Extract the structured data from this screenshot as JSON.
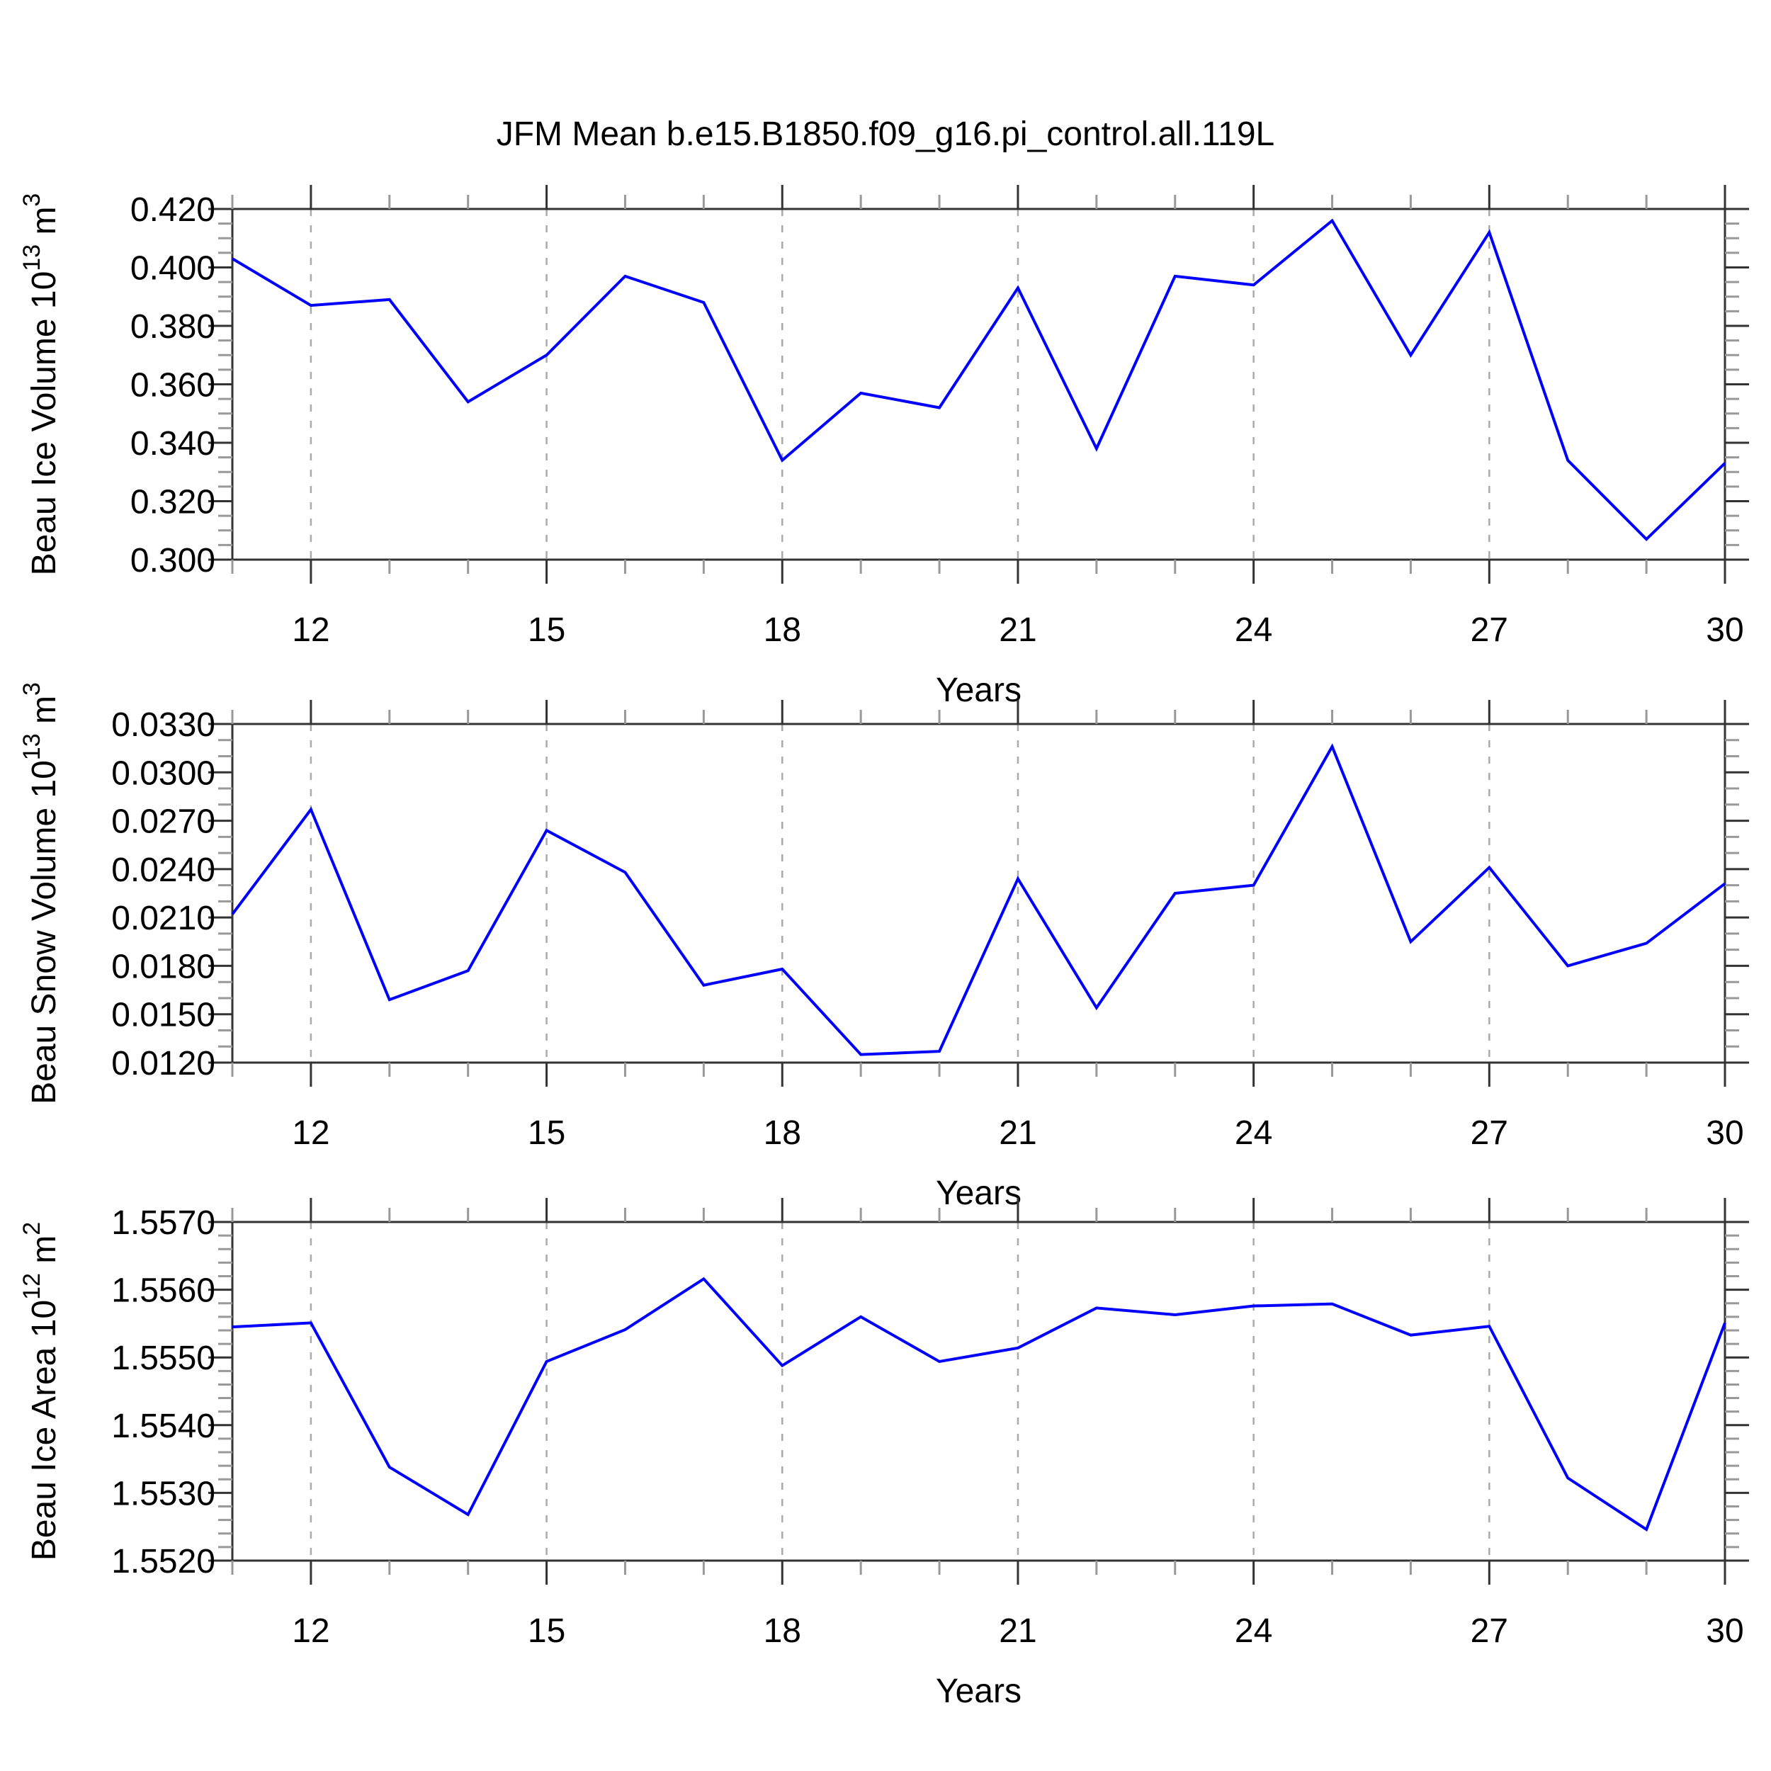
{
  "title": "JFM Mean b.e15.B1850.f09_g16.pi_control.all.119L",
  "colors": {
    "line": "#0000ff",
    "frame": "#333333",
    "major_tick": "#333333",
    "minor_tick": "#999999",
    "grid": "#aaaaaa",
    "text": "#000000",
    "background": "#ffffff"
  },
  "chart_data": [
    {
      "id": "beau-ice-volume",
      "type": "line",
      "title": "",
      "xlabel": "Years",
      "ylabel": "Beau Ice Volume 10^13 m^3",
      "ylabel_rich": [
        [
          "Beau Ice Volume 10",
          false
        ],
        [
          "13",
          true
        ],
        [
          " m",
          false
        ],
        [
          "3",
          true
        ]
      ],
      "xlim": [
        11,
        30
      ],
      "ylim": [
        0.3,
        0.42
      ],
      "x": [
        11,
        12,
        13,
        14,
        15,
        16,
        17,
        18,
        19,
        20,
        21,
        22,
        23,
        24,
        25,
        26,
        27,
        28,
        29,
        30
      ],
      "values": [
        0.403,
        0.387,
        0.389,
        0.354,
        0.37,
        0.397,
        0.388,
        0.334,
        0.357,
        0.352,
        0.393,
        0.338,
        0.397,
        0.394,
        0.416,
        0.37,
        0.412,
        0.334,
        0.307,
        0.333
      ],
      "xticks": [
        12,
        15,
        18,
        21,
        24,
        27,
        30
      ],
      "xtick_labels": [
        "12",
        "15",
        "18",
        "21",
        "24",
        "27",
        "30"
      ],
      "x_minor_step": 1,
      "grid_x": [
        12,
        15,
        18,
        21,
        24,
        27
      ],
      "ytick_step": 0.02,
      "ytick_labels": [
        "0.300",
        "0.320",
        "0.340",
        "0.360",
        "0.380",
        "0.400",
        "0.420"
      ],
      "y_minor_step": 0.005,
      "grid_on": "x-dashed"
    },
    {
      "id": "beau-snow-volume",
      "type": "line",
      "title": "",
      "xlabel": "Years",
      "ylabel": "Beau Snow Volume 10^13 m^3",
      "ylabel_rich": [
        [
          "Beau Snow Volume 10",
          false
        ],
        [
          "13",
          true
        ],
        [
          " m",
          false
        ],
        [
          "3",
          true
        ]
      ],
      "xlim": [
        11,
        30
      ],
      "ylim": [
        0.012,
        0.033
      ],
      "x": [
        11,
        12,
        13,
        14,
        15,
        16,
        17,
        18,
        19,
        20,
        21,
        22,
        23,
        24,
        25,
        26,
        27,
        28,
        29,
        30
      ],
      "values": [
        0.0212,
        0.0277,
        0.0159,
        0.0177,
        0.0264,
        0.0238,
        0.0168,
        0.0178,
        0.0125,
        0.0127,
        0.0234,
        0.0154,
        0.0225,
        0.023,
        0.0316,
        0.0195,
        0.0241,
        0.018,
        0.0194,
        0.0231
      ],
      "xticks": [
        12,
        15,
        18,
        21,
        24,
        27,
        30
      ],
      "xtick_labels": [
        "12",
        "15",
        "18",
        "21",
        "24",
        "27",
        "30"
      ],
      "x_minor_step": 1,
      "grid_x": [
        12,
        15,
        18,
        21,
        24,
        27
      ],
      "ytick_step": 0.003,
      "ytick_labels": [
        "0.0120",
        "0.0150",
        "0.0180",
        "0.0210",
        "0.0240",
        "0.0270",
        "0.0300",
        "0.0330"
      ],
      "y_minor_step": 0.001,
      "grid_on": "x-dashed"
    },
    {
      "id": "beau-ice-area",
      "type": "line",
      "title": "",
      "xlabel": "Years",
      "ylabel": "Beau Ice Area 10^12 m^2",
      "ylabel_rich": [
        [
          "Beau Ice Area 10",
          false
        ],
        [
          "12",
          true
        ],
        [
          " m",
          false
        ],
        [
          "2",
          true
        ]
      ],
      "xlim": [
        11,
        30
      ],
      "ylim": [
        1.552,
        1.557
      ],
      "x": [
        11,
        12,
        13,
        14,
        15,
        16,
        17,
        18,
        19,
        20,
        21,
        22,
        23,
        24,
        25,
        26,
        27,
        28,
        29,
        30
      ],
      "values": [
        1.55545,
        1.55551,
        1.55338,
        1.55268,
        1.55494,
        1.55541,
        1.55616,
        1.55488,
        1.5556,
        1.55494,
        1.55514,
        1.55573,
        1.55563,
        1.55576,
        1.55579,
        1.55533,
        1.55546,
        1.55322,
        1.55246,
        1.55551
      ],
      "xticks": [
        12,
        15,
        18,
        21,
        24,
        27,
        30
      ],
      "xtick_labels": [
        "12",
        "15",
        "18",
        "21",
        "24",
        "27",
        "30"
      ],
      "x_minor_step": 1,
      "grid_x": [
        12,
        15,
        18,
        21,
        24,
        27
      ],
      "ytick_step": 0.001,
      "ytick_labels": [
        "1.5520",
        "1.5530",
        "1.5540",
        "1.5550",
        "1.5560",
        "1.5570"
      ],
      "y_minor_step": 0.0002,
      "grid_on": "x-dashed"
    }
  ]
}
